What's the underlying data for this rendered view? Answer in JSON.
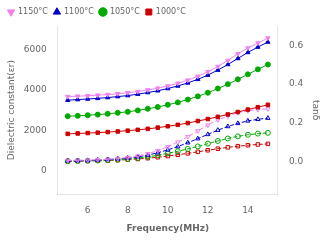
{
  "chart_data": {
    "type": "line",
    "x": [
      5,
      5.5,
      6,
      6.5,
      7,
      7.5,
      8,
      8.5,
      9,
      9.5,
      10,
      10.5,
      11,
      11.5,
      12,
      12.5,
      13,
      13.5,
      14,
      14.5,
      15
    ],
    "series": [
      {
        "name": "1150°C",
        "color": "#ee82ee",
        "marker": "triangle_down",
        "line_style": "solid",
        "values": [
          3680,
          3700,
          3720,
          3750,
          3780,
          3820,
          3870,
          3930,
          4010,
          4100,
          4210,
          4340,
          4500,
          4690,
          4920,
          5180,
          5480,
          5810,
          6100,
          6350,
          6600
        ]
      },
      {
        "name": "1100°C",
        "color": "#0000cc",
        "marker": "triangle_up",
        "line_style": "solid",
        "values": [
          3500,
          3530,
          3560,
          3590,
          3630,
          3680,
          3730,
          3800,
          3880,
          3970,
          4080,
          4210,
          4360,
          4540,
          4750,
          5000,
          5280,
          5580,
          5880,
          6150,
          6400
        ]
      },
      {
        "name": "1050°C",
        "color": "#00aa00",
        "marker": "circle",
        "line_style": "solid",
        "values": [
          2700,
          2720,
          2750,
          2780,
          2820,
          2870,
          2920,
          2990,
          3070,
          3160,
          3270,
          3390,
          3530,
          3690,
          3870,
          4080,
          4300,
          4540,
          4790,
          5040,
          5280
        ]
      },
      {
        "name": "1000°C",
        "color": "#cc0000",
        "marker": "square",
        "line_style": "solid",
        "values": [
          1820,
          1840,
          1860,
          1880,
          1910,
          1940,
          1980,
          2020,
          2070,
          2130,
          2200,
          2270,
          2360,
          2460,
          2560,
          2670,
          2790,
          2910,
          3030,
          3150,
          3270
        ]
      },
      {
        "name": "1150°C",
        "color": "#ee82ee",
        "marker": "triangle_down",
        "line_style": "dashed",
        "axis": "y2",
        "values": [
          0.005,
          0.006,
          0.007,
          0.009,
          0.011,
          0.015,
          0.02,
          0.028,
          0.04,
          0.056,
          0.076,
          0.1,
          0.128,
          0.158,
          0.188,
          0.215,
          0.235,
          0.252,
          0.262,
          0.268,
          0.272
        ]
      },
      {
        "name": "1100°C",
        "color": "#0000cc",
        "marker": "triangle_up",
        "line_style": "dashed",
        "axis": "y2",
        "values": [
          0.003,
          0.004,
          0.005,
          0.007,
          0.01,
          0.013,
          0.018,
          0.024,
          0.033,
          0.045,
          0.06,
          0.077,
          0.097,
          0.118,
          0.14,
          0.162,
          0.181,
          0.197,
          0.21,
          0.218,
          0.224
        ]
      },
      {
        "name": "1050°C",
        "color": "#00aa00",
        "marker": "circle",
        "line_style": "dashed",
        "axis": "y2",
        "values": [
          0.002,
          0.003,
          0.004,
          0.005,
          0.007,
          0.01,
          0.013,
          0.018,
          0.024,
          0.032,
          0.042,
          0.053,
          0.065,
          0.078,
          0.092,
          0.106,
          0.119,
          0.13,
          0.138,
          0.144,
          0.148
        ]
      },
      {
        "name": "1000°C",
        "color": "#cc0000",
        "marker": "square",
        "line_style": "dashed",
        "axis": "y2",
        "values": [
          0.001,
          0.002,
          0.003,
          0.004,
          0.005,
          0.007,
          0.01,
          0.013,
          0.017,
          0.022,
          0.028,
          0.035,
          0.042,
          0.05,
          0.058,
          0.066,
          0.073,
          0.079,
          0.084,
          0.088,
          0.091
        ]
      }
    ],
    "xlabel": "Frequency(MHz)",
    "ylabel": "Dielectric constant(εr)",
    "y2label": "tanδ",
    "xlim": [
      4.5,
      15.5
    ],
    "xticks": [
      6,
      8,
      10,
      12,
      14
    ],
    "ylim": [
      -1200,
      7200
    ],
    "yticks": [
      0,
      2000,
      4000,
      6000
    ],
    "y2lim": [
      -0.17,
      0.7
    ],
    "y2ticks": [
      {
        "value": 0.0,
        "label": "0.0"
      },
      {
        "value": 0.2,
        "label": "0.2"
      },
      {
        "value": 0.4,
        "label": "0.4"
      },
      {
        "value": 0.6,
        "label": "0.6"
      }
    ],
    "grid": false,
    "legend": "upper left"
  }
}
